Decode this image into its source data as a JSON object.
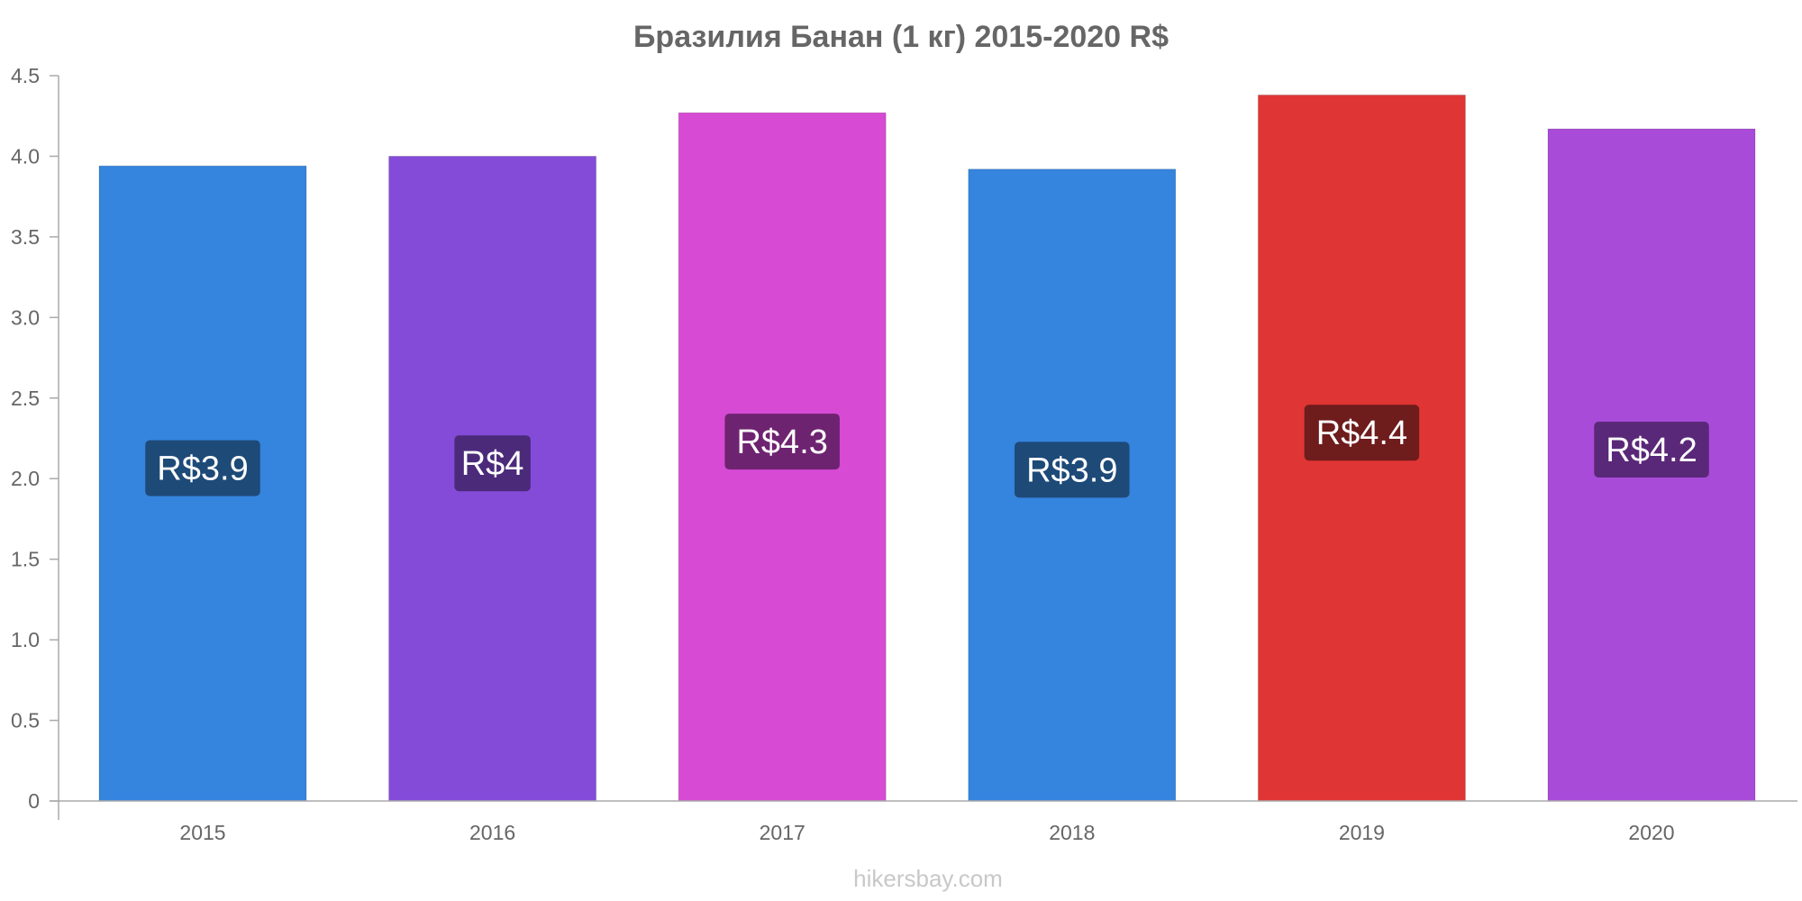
{
  "chart_data": {
    "type": "bar",
    "title": "Бразилия Банан (1 кг) 2015-2020 R$",
    "categories": [
      "2015",
      "2016",
      "2017",
      "2018",
      "2019",
      "2020"
    ],
    "values": [
      3.94,
      4.0,
      4.27,
      3.92,
      4.38,
      4.17
    ],
    "value_labels": [
      "R$3.9",
      "R$4",
      "R$4.3",
      "R$3.9",
      "R$4.4",
      "R$4.2"
    ],
    "bar_colors": [
      "#3584de",
      "#844bd9",
      "#d74ad4",
      "#3584de",
      "#e03535",
      "#a94bd9"
    ],
    "label_bg_colors": [
      "#1e4a78",
      "#4b2a7a",
      "#6e2370",
      "#1e4a78",
      "#6e1c1c",
      "#5a2878"
    ],
    "yticks": [
      "0",
      "0.5",
      "1.0",
      "1.5",
      "2.0",
      "2.5",
      "3.0",
      "3.5",
      "4.0",
      "4.5"
    ],
    "ylim": [
      0,
      4.5
    ],
    "xlabel": "",
    "ylabel": "",
    "grid": false,
    "legend": "none"
  },
  "watermark": "hikersbay.com"
}
